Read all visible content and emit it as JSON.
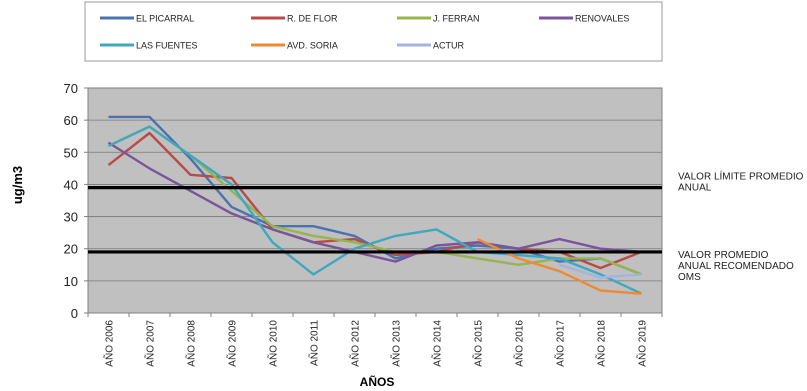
{
  "chart_data": {
    "type": "line",
    "title": "",
    "xlabel": "AÑOS",
    "ylabel": "ug/m3",
    "ylim": [
      0,
      70
    ],
    "yticks": [
      "0",
      "10",
      "20",
      "30",
      "40",
      "50",
      "60",
      "70"
    ],
    "grid": true,
    "legend_position": "top",
    "categories": [
      "AÑO 2006",
      "AÑO 2007",
      "AÑO 2008",
      "AÑO 2009",
      "AÑO 2010",
      "AÑO 2011",
      "AÑO 2012",
      "AÑO 2013",
      "AÑO 2014",
      "AÑO 2015",
      "AÑO 2016",
      "AÑO 2017",
      "AÑO 2018",
      "AÑO 2019"
    ],
    "series": [
      {
        "name": "EL PICARRAL",
        "color": "#4a72b0",
        "values": [
          61,
          61,
          48,
          33,
          27,
          27,
          24,
          17,
          20,
          21,
          20,
          16,
          17,
          12
        ]
      },
      {
        "name": "R. DE FLOR",
        "color": "#b94a48",
        "values": [
          46,
          56,
          43,
          42,
          26,
          22,
          23,
          18,
          19,
          22,
          20,
          19,
          14,
          19
        ]
      },
      {
        "name": "J. FERRAN",
        "color": "#94b550",
        "values": [
          52,
          58,
          49,
          38,
          27,
          24,
          22,
          19,
          19,
          17,
          15,
          17,
          17,
          12
        ]
      },
      {
        "name": "RENOVALES",
        "color": "#7b559c",
        "values": [
          53,
          45,
          38,
          31,
          26,
          22,
          19,
          16,
          21,
          22,
          20,
          23,
          20,
          19
        ]
      },
      {
        "name": "LAS FUENTES",
        "color": "#3fa7bf",
        "values": [
          52,
          58,
          49,
          40,
          22,
          12,
          20,
          24,
          26,
          19,
          18,
          17,
          12,
          6
        ]
      },
      {
        "name": "AVD. SORIA",
        "color": "#ee8a34",
        "values": [
          null,
          null,
          null,
          null,
          null,
          null,
          null,
          null,
          null,
          23,
          17,
          13,
          7,
          6
        ]
      },
      {
        "name": "ACTUR",
        "color": "#9fb5e0",
        "values": [
          null,
          null,
          null,
          null,
          null,
          null,
          null,
          null,
          null,
          null,
          null,
          15,
          11,
          12
        ]
      }
    ],
    "reference_lines": [
      {
        "value": 39,
        "label_lines": [
          "VALOR LÍMITE  PROMEDIO",
          "ANUAL"
        ]
      },
      {
        "value": 19,
        "label_lines": [
          "VALOR PROMEDIO",
          "ANUAL  RECOMENDADO",
          "OMS"
        ]
      }
    ]
  }
}
